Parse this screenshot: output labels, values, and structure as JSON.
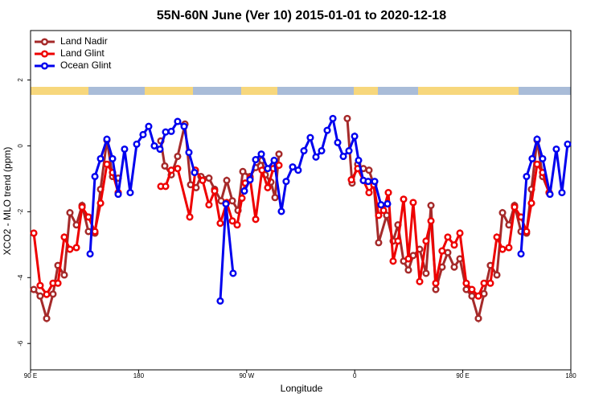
{
  "chart_data": {
    "type": "line",
    "title": "55N-60N June (Ver 10)   2015-01-01 to 2020-12-18",
    "x_label": "Longitude",
    "y_label": "XCO2 - MLO trend (ppm)",
    "xlim": [
      90,
      540
    ],
    "ylim": [
      -6.8,
      3.5
    ],
    "xticks": [
      {
        "value": 90,
        "label": "90 E"
      },
      180,
      {
        "value": 270,
        "label": "90 W"
      },
      {
        "value": 360,
        "label": "0"
      },
      {
        "value": 450,
        "label": "90 E"
      },
      {
        "value": 540,
        "label": "180"
      }
    ],
    "yticks": [
      -6,
      -4,
      -2,
      0,
      2
    ],
    "legend": "top-left",
    "series": [
      {
        "name": "Land Nadir",
        "color": "#a52a2a",
        "x": [
          92.7,
          98.0,
          103.4,
          108.7,
          112.8,
          118.1,
          122.8,
          128.2,
          132.9,
          138.2,
          143.6,
          148.3,
          153.6,
          158.3,
          163.0,
          null,
          198.5,
          201.8,
          207.2,
          212.5,
          218.6,
          223.3,
          227.9,
          231.9,
          238.6,
          243.3,
          248.7,
          253.4,
          258.1,
          262.8,
          266.8,
          272.8,
          277.5,
          282.8,
          285.5,
          290.2,
          293.6,
          296.9,
          null,
          353.8,
          357.8,
          362.5,
          367.2,
          371.9,
          375.9,
          379.9,
          386.6,
          392.0,
          396.0,
          400.7,
          404.7,
          408.7,
          414.1,
          419.4,
          423.5,
          427.5,
          432.8,
          437.5,
          442.9,
          447.6,
          452.9,
          457.6,
          463.0,
          467.7,
          473.0,
          478.4,
          483.1,
          488.4,
          493.1,
          498.5,
          503.1,
          507.2,
          511.9,
          516.5,
          521.9
        ],
        "values": [
          -4.36,
          -4.56,
          -5.24,
          -4.5,
          -3.63,
          -3.92,
          -2.03,
          -2.4,
          -1.81,
          -2.6,
          -2.65,
          -1.32,
          0.17,
          -0.93,
          -0.98,
          null,
          0.15,
          -0.61,
          -0.88,
          -0.32,
          0.66,
          -1.18,
          -1.27,
          -0.93,
          -0.98,
          -1.32,
          -1.67,
          -1.05,
          -1.67,
          -1.96,
          -0.78,
          -0.93,
          -0.66,
          -0.44,
          -0.88,
          -1.1,
          -1.57,
          -0.25,
          null,
          0.83,
          -1.13,
          -0.56,
          -0.69,
          -0.74,
          -1.18,
          -2.94,
          -2.11,
          -2.89,
          -2.4,
          -3.5,
          -3.77,
          -3.33,
          -3.14,
          -3.87,
          -1.81,
          -4.36,
          -3.68,
          -3.24,
          -3.68,
          -3.43,
          -4.36,
          -4.56,
          -5.24,
          -4.49,
          -3.63,
          -3.92,
          -2.03,
          -2.4,
          -1.81,
          -2.6,
          -2.65,
          -1.32,
          0.17,
          -0.93,
          -1.42
        ]
      },
      {
        "name": "Land Glint",
        "color": "#ee0000",
        "x": [
          92.7,
          98.0,
          103.4,
          108.7,
          112.8,
          118.1,
          122.8,
          128.2,
          132.9,
          138.2,
          143.6,
          148.3,
          153.6,
          158.3,
          163.0,
          null,
          198.5,
          202.5,
          207.2,
          212.5,
          222.6,
          227.3,
          233.3,
          238.6,
          243.3,
          248.0,
          253.4,
          258.1,
          262.1,
          266.1,
          268.8,
          272.8,
          277.5,
          282.8,
          287.5,
          292.2,
          296.9,
          null,
          357.2,
          362.5,
          367.2,
          371.9,
          375.9,
          379.9,
          384.0,
          388.0,
          392.0,
          396.0,
          400.7,
          404.7,
          408.7,
          414.1,
          419.4,
          423.5,
          427.5,
          432.8,
          437.5,
          442.9,
          447.6,
          452.9,
          457.6,
          463.0,
          467.7,
          473.0,
          478.4,
          483.1,
          488.4,
          493.1,
          498.5,
          503.1,
          507.2,
          511.9,
          516.5,
          521.9
        ],
        "values": [
          -2.65,
          -4.24,
          -4.51,
          -4.17,
          -4.17,
          -2.77,
          -3.14,
          -3.09,
          -1.86,
          -2.16,
          -2.6,
          -1.74,
          -0.56,
          -0.81,
          -1.42,
          null,
          -1.23,
          -1.23,
          -0.74,
          -0.69,
          -2.16,
          -0.74,
          -1.05,
          -1.79,
          -1.37,
          -2.35,
          -1.72,
          -2.28,
          -2.4,
          -1.59,
          -1.13,
          -0.98,
          -2.23,
          -0.74,
          -1.27,
          -0.69,
          -0.59,
          null,
          -1.03,
          -0.69,
          -1.05,
          -1.42,
          -1.18,
          -2.11,
          -1.96,
          -1.42,
          -3.5,
          -2.89,
          -1.62,
          -3.43,
          -1.72,
          -4.12,
          -2.89,
          -2.28,
          -4.17,
          -3.19,
          -2.77,
          -3.01,
          -2.65,
          -4.17,
          -4.36,
          -4.56,
          -4.17,
          -4.17,
          -2.77,
          -3.14,
          -3.09,
          -1.86,
          -2.16,
          -2.6,
          -1.74,
          -0.56,
          -0.81,
          -1.42
        ]
      },
      {
        "name": "Ocean Glint",
        "color": "#0000ee",
        "x": [
          139.6,
          143.6,
          148.3,
          153.6,
          158.3,
          163.0,
          168.3,
          173.0,
          178.4,
          183.7,
          188.4,
          193.1,
          197.8,
          202.5,
          207.2,
          212.5,
          217.9,
          221.9,
          226.6,
          null,
          248.0,
          252.7,
          258.7,
          null,
          268.1,
          272.8,
          277.5,
          282.2,
          287.5,
          292.9,
          298.9,
          302.9,
          308.3,
          312.9,
          317.7,
          323.0,
          327.7,
          332.4,
          337.1,
          341.8,
          345.8,
          350.5,
          355.2,
          359.9,
          363.2,
          367.2,
          371.2,
          376.6,
          381.9,
          387.3,
          null,
          498.5,
          503.1,
          507.8,
          511.9,
          516.5,
          522.6,
          527.9,
          532.6,
          537.3
        ],
        "values": [
          -3.28,
          -0.93,
          -0.39,
          0.2,
          -0.39,
          -1.47,
          -0.1,
          -1.42,
          0.05,
          0.34,
          0.59,
          0,
          -0.1,
          0.42,
          0.44,
          0.74,
          0.59,
          -0.2,
          -0.81,
          null,
          -4.71,
          -1.76,
          -3.87,
          null,
          -1.37,
          -1.03,
          -0.42,
          -0.25,
          -0.69,
          -0.44,
          -1.99,
          -1.08,
          -0.64,
          -0.74,
          -0.15,
          0.25,
          -0.34,
          -0.15,
          0.47,
          0.83,
          0.1,
          -0.32,
          -0.15,
          0.29,
          -0.44,
          -1.05,
          -1.08,
          -1.08,
          -1.79,
          -1.76,
          null,
          -3.28,
          -0.93,
          -0.39,
          0.2,
          -0.39,
          -1.47,
          -0.1,
          -1.42,
          0.05
        ]
      }
    ]
  }
}
